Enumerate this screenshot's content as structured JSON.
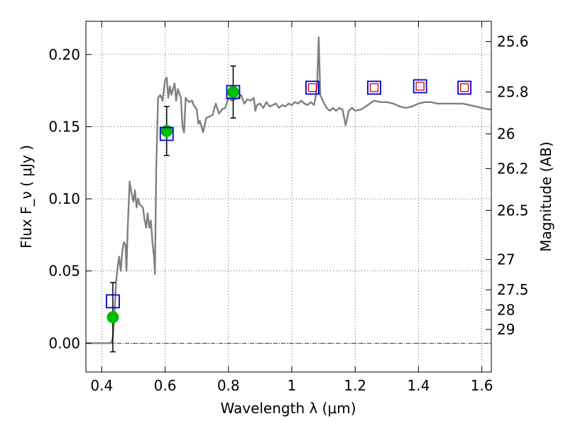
{
  "chart_data": {
    "type": "line",
    "xlabel": "Wavelength  λ (μm)",
    "ylabel": "Flux  F_ν  ( μJy )",
    "y2label": "Magnitude (AB)",
    "xlim": [
      0.35,
      1.63
    ],
    "ylim": [
      -0.02,
      0.223
    ],
    "grid": true,
    "x_ticks": [
      0.4,
      0.6,
      0.8,
      1.0,
      1.2,
      1.4,
      1.6
    ],
    "x_tick_labels": [
      "0.4",
      "0.6",
      "0.8",
      "1",
      "1.2",
      "1.4",
      "1.6"
    ],
    "y_ticks": [
      0.0,
      0.05,
      0.1,
      0.15,
      0.2
    ],
    "y_tick_labels": [
      "0.00",
      "0.05",
      "0.10",
      "0.15",
      "0.20"
    ],
    "y2_ticks": [
      {
        "label": "25.6",
        "flux": 0.209
      },
      {
        "label": "25.8",
        "flux": 0.174
      },
      {
        "label": "26",
        "flux": 0.145
      },
      {
        "label": "26.2",
        "flux": 0.121
      },
      {
        "label": "26.5",
        "flux": 0.092
      },
      {
        "label": "27",
        "flux": 0.058
      },
      {
        "label": "27.5",
        "flux": 0.037
      },
      {
        "label": "28",
        "flux": 0.023
      },
      {
        "label": "29",
        "flux": 0.0095
      }
    ],
    "model_spectrum": {
      "color": "#808080",
      "points": [
        [
          0.35,
          0.0
        ],
        [
          0.43,
          0.0
        ],
        [
          0.435,
          0.004
        ],
        [
          0.44,
          0.018
        ],
        [
          0.445,
          0.042
        ],
        [
          0.45,
          0.052
        ],
        [
          0.455,
          0.06
        ],
        [
          0.46,
          0.05
        ],
        [
          0.465,
          0.064
        ],
        [
          0.47,
          0.07
        ],
        [
          0.475,
          0.068
        ],
        [
          0.478,
          0.05
        ],
        [
          0.482,
          0.08
        ],
        [
          0.488,
          0.112
        ],
        [
          0.493,
          0.105
        ],
        [
          0.5,
          0.098
        ],
        [
          0.505,
          0.106
        ],
        [
          0.51,
          0.094
        ],
        [
          0.515,
          0.1
        ],
        [
          0.52,
          0.096
        ],
        [
          0.53,
          0.094
        ],
        [
          0.535,
          0.086
        ],
        [
          0.54,
          0.08
        ],
        [
          0.545,
          0.09
        ],
        [
          0.55,
          0.08
        ],
        [
          0.555,
          0.085
        ],
        [
          0.56,
          0.07
        ],
        [
          0.565,
          0.06
        ],
        [
          0.568,
          0.048
        ],
        [
          0.572,
          0.12
        ],
        [
          0.578,
          0.17
        ],
        [
          0.585,
          0.172
        ],
        [
          0.592,
          0.168
        ],
        [
          0.6,
          0.182
        ],
        [
          0.605,
          0.184
        ],
        [
          0.61,
          0.17
        ],
        [
          0.615,
          0.178
        ],
        [
          0.62,
          0.172
        ],
        [
          0.63,
          0.18
        ],
        [
          0.635,
          0.168
        ],
        [
          0.64,
          0.176
        ],
        [
          0.65,
          0.17
        ],
        [
          0.655,
          0.15
        ],
        [
          0.66,
          0.146
        ],
        [
          0.665,
          0.17
        ],
        [
          0.675,
          0.167
        ],
        [
          0.685,
          0.168
        ],
        [
          0.69,
          0.165
        ],
        [
          0.7,
          0.162
        ],
        [
          0.705,
          0.152
        ],
        [
          0.71,
          0.154
        ],
        [
          0.72,
          0.146
        ],
        [
          0.73,
          0.156
        ],
        [
          0.74,
          0.157
        ],
        [
          0.75,
          0.158
        ],
        [
          0.76,
          0.166
        ],
        [
          0.77,
          0.159
        ],
        [
          0.78,
          0.162
        ],
        [
          0.79,
          0.163
        ],
        [
          0.8,
          0.17
        ],
        [
          0.81,
          0.168
        ],
        [
          0.82,
          0.169
        ],
        [
          0.83,
          0.17
        ],
        [
          0.84,
          0.172
        ],
        [
          0.85,
          0.166
        ],
        [
          0.86,
          0.169
        ],
        [
          0.87,
          0.168
        ],
        [
          0.88,
          0.17
        ],
        [
          0.885,
          0.161
        ],
        [
          0.89,
          0.165
        ],
        [
          0.9,
          0.166
        ],
        [
          0.91,
          0.163
        ],
        [
          0.92,
          0.167
        ],
        [
          0.93,
          0.164
        ],
        [
          0.94,
          0.165
        ],
        [
          0.95,
          0.166
        ],
        [
          0.96,
          0.163
        ],
        [
          0.97,
          0.165
        ],
        [
          0.98,
          0.164
        ],
        [
          0.99,
          0.166
        ],
        [
          1.0,
          0.165
        ],
        [
          1.01,
          0.167
        ],
        [
          1.02,
          0.166
        ],
        [
          1.03,
          0.168
        ],
        [
          1.04,
          0.166
        ],
        [
          1.05,
          0.165
        ],
        [
          1.06,
          0.167
        ],
        [
          1.07,
          0.165
        ],
        [
          1.075,
          0.17
        ],
        [
          1.08,
          0.178
        ],
        [
          1.085,
          0.212
        ],
        [
          1.09,
          0.172
        ],
        [
          1.1,
          0.167
        ],
        [
          1.11,
          0.163
        ],
        [
          1.12,
          0.161
        ],
        [
          1.13,
          0.163
        ],
        [
          1.14,
          0.161
        ],
        [
          1.15,
          0.163
        ],
        [
          1.16,
          0.162
        ],
        [
          1.17,
          0.151
        ],
        [
          1.18,
          0.161
        ],
        [
          1.19,
          0.163
        ],
        [
          1.2,
          0.161
        ],
        [
          1.22,
          0.162
        ],
        [
          1.24,
          0.165
        ],
        [
          1.26,
          0.168
        ],
        [
          1.28,
          0.167
        ],
        [
          1.3,
          0.167
        ],
        [
          1.32,
          0.166
        ],
        [
          1.34,
          0.164
        ],
        [
          1.36,
          0.163
        ],
        [
          1.38,
          0.164
        ],
        [
          1.4,
          0.166
        ],
        [
          1.42,
          0.167
        ],
        [
          1.44,
          0.167
        ],
        [
          1.46,
          0.166
        ],
        [
          1.48,
          0.166
        ],
        [
          1.5,
          0.166
        ],
        [
          1.52,
          0.166
        ],
        [
          1.54,
          0.166
        ],
        [
          1.56,
          0.165
        ],
        [
          1.58,
          0.164
        ],
        [
          1.6,
          0.163
        ],
        [
          1.62,
          0.162
        ],
        [
          1.63,
          0.162
        ]
      ]
    },
    "observed_points": {
      "color": "#00bf00",
      "points": [
        {
          "x": 0.435,
          "y": 0.018,
          "yerr": 0.024
        },
        {
          "x": 0.605,
          "y": 0.147,
          "yerr": 0.017
        },
        {
          "x": 0.815,
          "y": 0.174,
          "yerr": 0.018
        }
      ]
    },
    "model_photometry": {
      "color": "#0000cc",
      "points": [
        {
          "x": 0.435,
          "y": 0.029
        },
        {
          "x": 0.605,
          "y": 0.145
        },
        {
          "x": 0.815,
          "y": 0.174
        },
        {
          "x": 1.065,
          "y": 0.177
        },
        {
          "x": 1.26,
          "y": 0.177
        },
        {
          "x": 1.405,
          "y": 0.178
        },
        {
          "x": 1.545,
          "y": 0.177
        }
      ]
    },
    "upper_limit_markers": {
      "color": "#cc0000",
      "points": [
        {
          "x": 1.065,
          "y": 0.177
        },
        {
          "x": 1.26,
          "y": 0.177
        },
        {
          "x": 1.405,
          "y": 0.178
        },
        {
          "x": 1.545,
          "y": 0.177
        }
      ]
    }
  }
}
